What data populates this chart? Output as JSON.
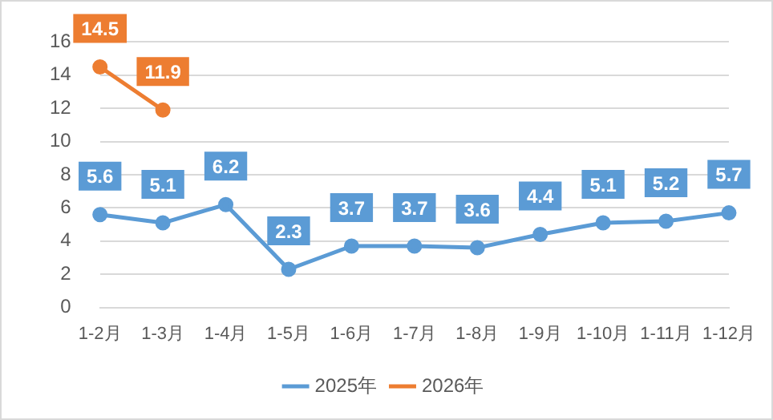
{
  "chart_data": {
    "type": "line",
    "categories": [
      "1-2月",
      "1-3月",
      "1-4月",
      "1-5月",
      "1-6月",
      "1-7月",
      "1-8月",
      "1-9月",
      "1-10月",
      "1-11月",
      "1-12月"
    ],
    "series": [
      {
        "name": "2025年",
        "color": "#5b9bd5",
        "values": [
          5.6,
          5.1,
          6.2,
          2.3,
          3.7,
          3.7,
          3.6,
          4.4,
          5.1,
          5.2,
          5.7
        ]
      },
      {
        "name": "2026年",
        "color": "#ed7d31",
        "values": [
          14.5,
          11.9,
          null,
          null,
          null,
          null,
          null,
          null,
          null,
          null,
          null
        ]
      }
    ],
    "ylim": [
      0,
      16
    ],
    "yticks": [
      0,
      2,
      4,
      6,
      8,
      10,
      12,
      14,
      16
    ],
    "grid": "y",
    "legend": "bottom",
    "marker": "circle",
    "line_style": "solid",
    "data_labels": true
  }
}
